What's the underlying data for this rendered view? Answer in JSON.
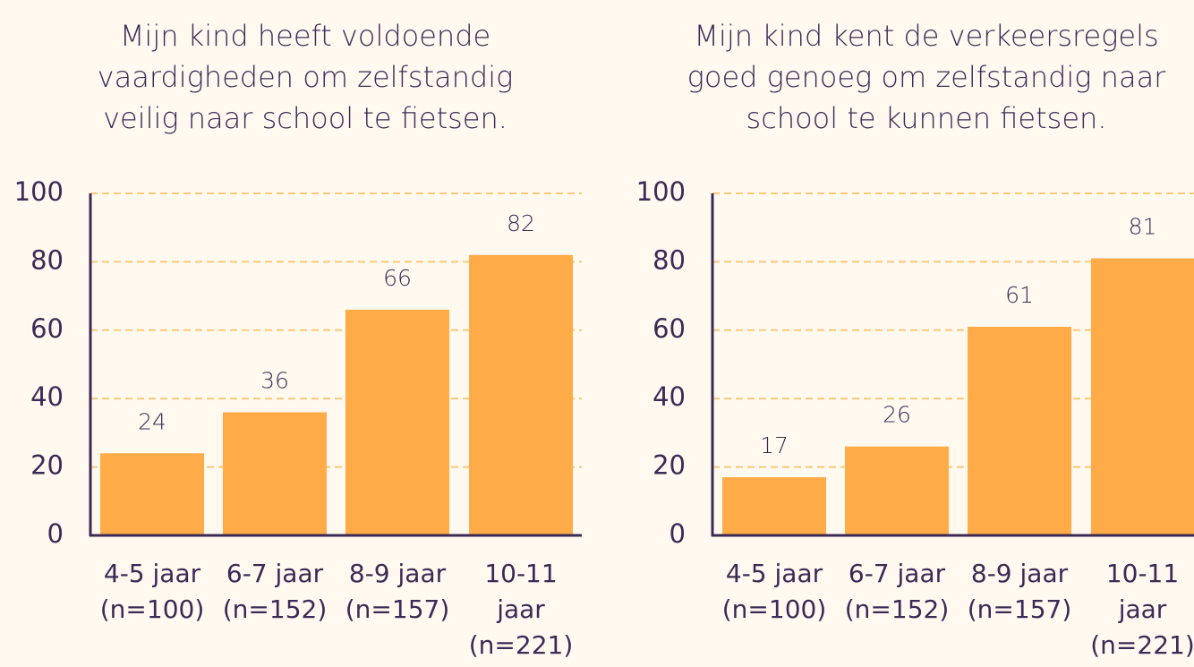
{
  "colors": {
    "background": "#fff9f0",
    "bar": "#ffab47",
    "gridline": "#f9c878",
    "axis": "#3b2a55",
    "text": "#3b2a55"
  },
  "chart_data": [
    {
      "type": "bar",
      "title_lines": [
        "Mijn kind heeft voldoende",
        "vaardigheden om zelfstandig",
        "veilig naar school te fietsen."
      ],
      "categories": [
        [
          "4-5 jaar",
          "(n=100)"
        ],
        [
          "6-7 jaar",
          "(n=152)"
        ],
        [
          "8-9 jaar",
          "(n=157)"
        ],
        [
          "10-11",
          "jaar",
          "(n=221)"
        ]
      ],
      "values": [
        24,
        36,
        66,
        82
      ],
      "ylim": [
        0,
        100
      ],
      "yticks": [
        0,
        20,
        40,
        60,
        80,
        100
      ],
      "grid": true,
      "grid_style": "dashed"
    },
    {
      "type": "bar",
      "title_lines": [
        "Mijn kind kent de verkeersregels",
        "goed genoeg om zelfstandig naar",
        "school te kunnen fietsen."
      ],
      "categories": [
        [
          "4-5 jaar",
          "(n=100)"
        ],
        [
          "6-7 jaar",
          "(n=152)"
        ],
        [
          "8-9 jaar",
          "(n=157)"
        ],
        [
          "10-11",
          "jaar",
          "(n=221)"
        ]
      ],
      "values": [
        17,
        26,
        61,
        81
      ],
      "ylim": [
        0,
        100
      ],
      "yticks": [
        0,
        20,
        40,
        60,
        80,
        100
      ],
      "grid": true,
      "grid_style": "dashed"
    }
  ]
}
